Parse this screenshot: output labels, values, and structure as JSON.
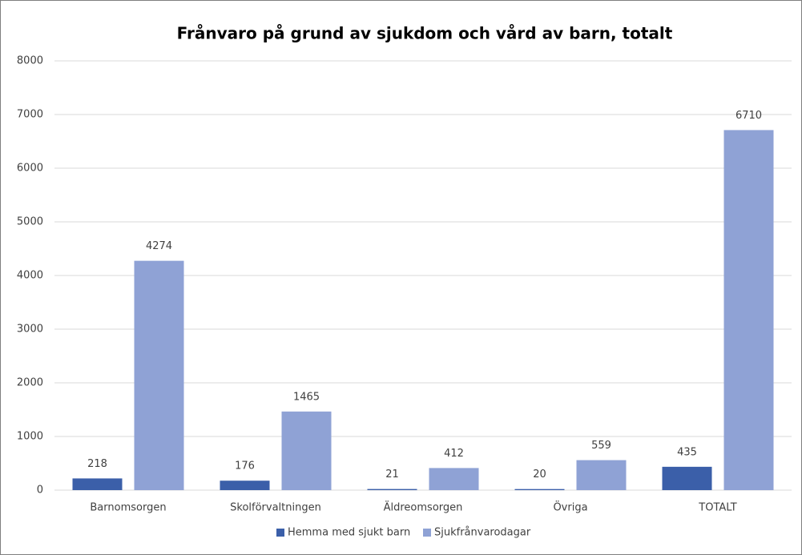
{
  "chart_data": {
    "type": "bar",
    "title": "Frånvaro på grund av sjukdom och vård av barn, totalt",
    "categories": [
      "Barnomsorgen",
      "Skolförvaltningen",
      "Äldreomsorgen",
      "Övriga",
      "TOTALT"
    ],
    "series": [
      {
        "name": "Hemma med sjukt barn",
        "color": "#3b5fa9",
        "values": [
          218,
          176,
          21,
          20,
          435
        ]
      },
      {
        "name": "Sjukfrånvarodagar",
        "color": "#8fa2d5",
        "values": [
          4274,
          1465,
          412,
          559,
          6710
        ]
      }
    ],
    "ylim": [
      0,
      8000
    ],
    "yticks": [
      0,
      1000,
      2000,
      3000,
      4000,
      5000,
      6000,
      7000,
      8000
    ],
    "grid": true,
    "legend": "bottom"
  }
}
